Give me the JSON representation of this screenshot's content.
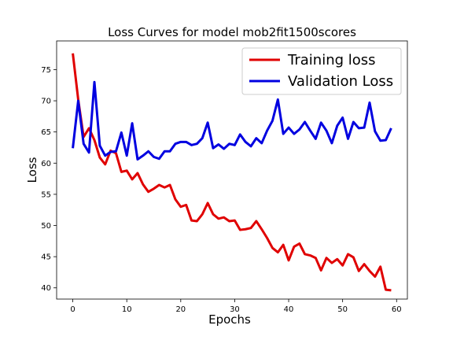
{
  "chart_data": {
    "type": "line",
    "title": "Loss Curves for model mob2fit1500scores",
    "xlabel": "Epochs",
    "ylabel": "Loss",
    "xlim": [
      -3,
      62
    ],
    "ylim": [
      38.2,
      79.6
    ],
    "xticks": [
      0,
      10,
      20,
      30,
      40,
      50,
      60
    ],
    "yticks": [
      40,
      45,
      50,
      55,
      60,
      65,
      70,
      75
    ],
    "grid": false,
    "legend_position": "top-right",
    "x": [
      0,
      1,
      2,
      3,
      4,
      5,
      6,
      7,
      8,
      9,
      10,
      11,
      12,
      13,
      14,
      15,
      16,
      17,
      18,
      19,
      20,
      21,
      22,
      23,
      24,
      25,
      26,
      27,
      28,
      29,
      30,
      31,
      32,
      33,
      34,
      35,
      36,
      37,
      38,
      39,
      40,
      41,
      42,
      43,
      44,
      45,
      46,
      47,
      48,
      49,
      50,
      51,
      52,
      53,
      54,
      55,
      56,
      57,
      58,
      59
    ],
    "series": [
      {
        "name": "Training loss",
        "color": "#e00000",
        "values": [
          77.6,
          70.2,
          64.2,
          65.6,
          63.7,
          60.9,
          59.8,
          62.0,
          61.6,
          58.6,
          58.8,
          57.4,
          58.4,
          56.6,
          55.4,
          55.9,
          56.5,
          56.1,
          56.5,
          54.2,
          53.0,
          53.3,
          50.8,
          50.7,
          51.8,
          53.6,
          51.8,
          51.1,
          51.3,
          50.7,
          50.8,
          49.3,
          49.4,
          49.6,
          50.7,
          49.4,
          48.0,
          46.4,
          45.7,
          46.9,
          44.4,
          46.6,
          47.1,
          45.4,
          45.2,
          44.8,
          42.8,
          44.8,
          44.0,
          44.6,
          43.6,
          45.4,
          44.9,
          42.7,
          43.8,
          42.7,
          41.8,
          43.4,
          39.7,
          39.6
        ]
      },
      {
        "name": "Validation Loss",
        "color": "#0000e0",
        "values": [
          62.4,
          70.0,
          63.1,
          61.7,
          73.0,
          62.8,
          61.2,
          61.8,
          61.9,
          64.9,
          61.2,
          66.4,
          60.6,
          61.2,
          61.9,
          61.0,
          60.7,
          61.9,
          61.9,
          63.1,
          63.4,
          63.4,
          62.9,
          63.1,
          64.0,
          66.5,
          62.4,
          63.0,
          62.3,
          63.1,
          62.9,
          64.6,
          63.4,
          62.7,
          64.0,
          63.2,
          65.2,
          66.8,
          70.2,
          64.7,
          65.7,
          64.7,
          65.4,
          66.6,
          65.2,
          63.9,
          66.5,
          65.2,
          63.2,
          66.0,
          67.3,
          63.9,
          66.6,
          65.6,
          65.7,
          69.7,
          65.1,
          63.6,
          63.7,
          65.6
        ]
      }
    ]
  }
}
